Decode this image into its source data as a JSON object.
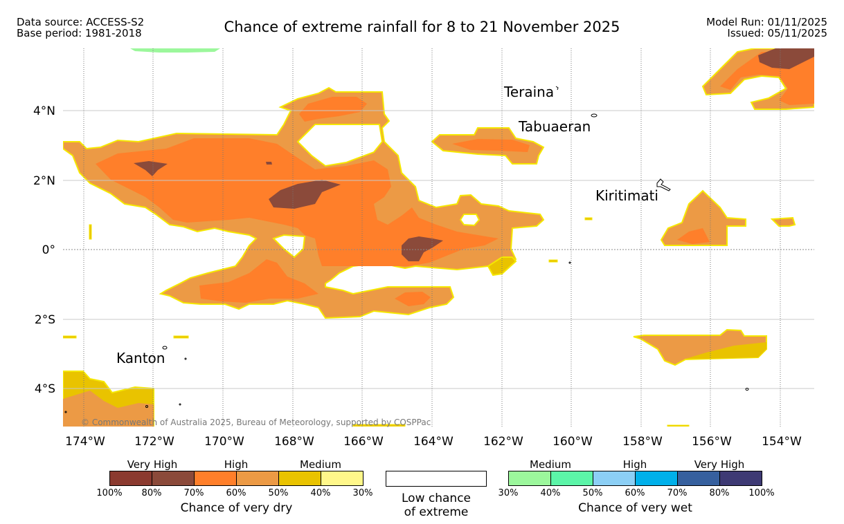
{
  "header": {
    "data_source": "Data source: ACCESS-S2",
    "base_period": "Base period: 1981-2018",
    "title": "Chance of extreme rainfall for 8 to 21 November 2025",
    "model_run": "Model Run: 01/11/2025",
    "issued": "Issued: 05/11/2025"
  },
  "map": {
    "lat_labels": [
      "4°N",
      "2°N",
      "0°",
      "2°S",
      "4°S"
    ],
    "lon_labels": [
      "174°W",
      "172°W",
      "170°W",
      "168°W",
      "166°W",
      "164°W",
      "162°W",
      "160°W",
      "158°W",
      "156°W",
      "154°W"
    ],
    "places": [
      "Teraina",
      "Tabuaeran",
      "Kiritimati",
      "Kanton"
    ],
    "copyright": "© Commonwealth of Australia 2025, Bureau of Meteorology, supported by COSPPac"
  },
  "legend": {
    "dry": {
      "title": "Chance of very dry",
      "groups": [
        "Very High",
        "High",
        "Medium"
      ],
      "ticks": [
        "100%",
        "80%",
        "70%",
        "60%",
        "50%",
        "40%",
        "30%"
      ],
      "colors": [
        "#8b3a2f",
        "#8b4a3a",
        "#ff7f2a",
        "#ec9a45",
        "#e9c300",
        "#fff78a"
      ]
    },
    "low": {
      "line1": "Low chance",
      "line2": "of extreme"
    },
    "wet": {
      "title": "Chance of very wet",
      "groups": [
        "Medium",
        "High",
        "Very High"
      ],
      "ticks": [
        "30%",
        "40%",
        "50%",
        "60%",
        "70%",
        "80%",
        "100%"
      ],
      "colors": [
        "#9cf79c",
        "#5cf5a8",
        "#8ccff5",
        "#00b0ea",
        "#36609e",
        "#3e3a74"
      ]
    }
  },
  "colors": {
    "dry_medium": "#e9c300",
    "dry_high_low": "#ec9a45",
    "dry_high": "#ff7f2a",
    "dry_very_high": "#8b4a3a",
    "wet_medium": "#9cf79c",
    "outline": "#f5e800"
  }
}
